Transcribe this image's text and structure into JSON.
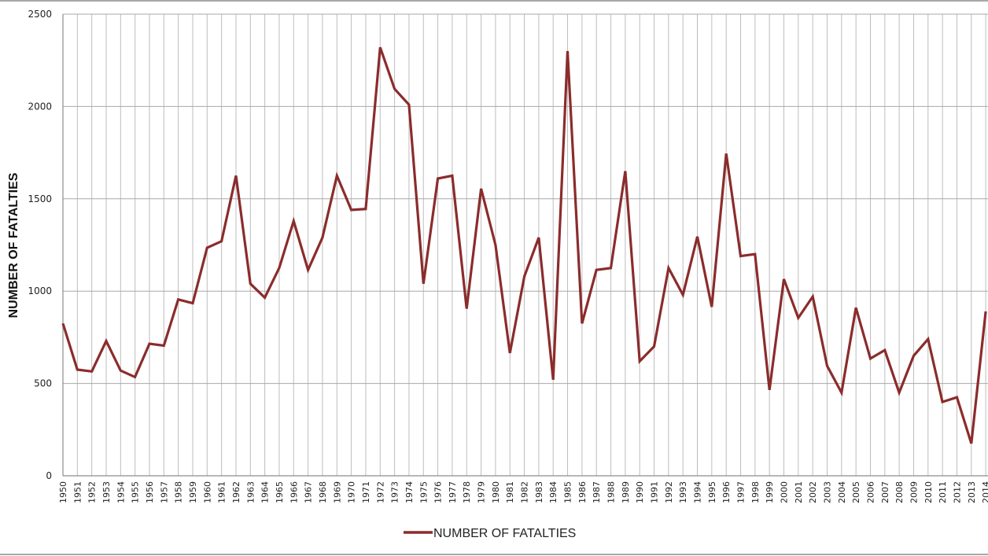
{
  "chart_data": {
    "type": "line",
    "ylabel": "NUMBER OF FATALTIES",
    "ylim": [
      0,
      2500
    ],
    "yticks": [
      0,
      500,
      1000,
      1500,
      2000,
      2500
    ],
    "grid": true,
    "legend_position": "bottom",
    "categories": [
      "1950",
      "1951",
      "1952",
      "1953",
      "1954",
      "1955",
      "1956",
      "1957",
      "1958",
      "1959",
      "1960",
      "1961",
      "1962",
      "1963",
      "1964",
      "1965",
      "1966",
      "1967",
      "1968",
      "1969",
      "1970",
      "1971",
      "1972",
      "1973",
      "1974",
      "1975",
      "1976",
      "1977",
      "1978",
      "1979",
      "1980",
      "1981",
      "1982",
      "1983",
      "1984",
      "1985",
      "1986",
      "1987",
      "1988",
      "1989",
      "1990",
      "1991",
      "1992",
      "1993",
      "1994",
      "1995",
      "1996",
      "1997",
      "1998",
      "1999",
      "2000",
      "2001",
      "2002",
      "2003",
      "2004",
      "2005",
      "2006",
      "2007",
      "2008",
      "2009",
      "2010",
      "2011",
      "2012",
      "2013",
      "2014"
    ],
    "series": [
      {
        "name": "NUMBER OF FATALTIES",
        "color": "#8b2c2c",
        "values": [
          825,
          575,
          565,
          730,
          570,
          535,
          715,
          705,
          955,
          935,
          1235,
          1270,
          1625,
          1040,
          965,
          1125,
          1380,
          1115,
          1290,
          1625,
          1440,
          1445,
          2320,
          2095,
          2010,
          1040,
          1610,
          1625,
          905,
          1555,
          1250,
          665,
          1080,
          1290,
          520,
          2300,
          825,
          1115,
          1125,
          1650,
          620,
          700,
          1125,
          980,
          1295,
          915,
          1745,
          1190,
          1200,
          465,
          1065,
          855,
          970,
          595,
          450,
          910,
          635,
          680,
          450,
          650,
          740,
          400,
          425,
          175,
          890
        ]
      }
    ]
  }
}
